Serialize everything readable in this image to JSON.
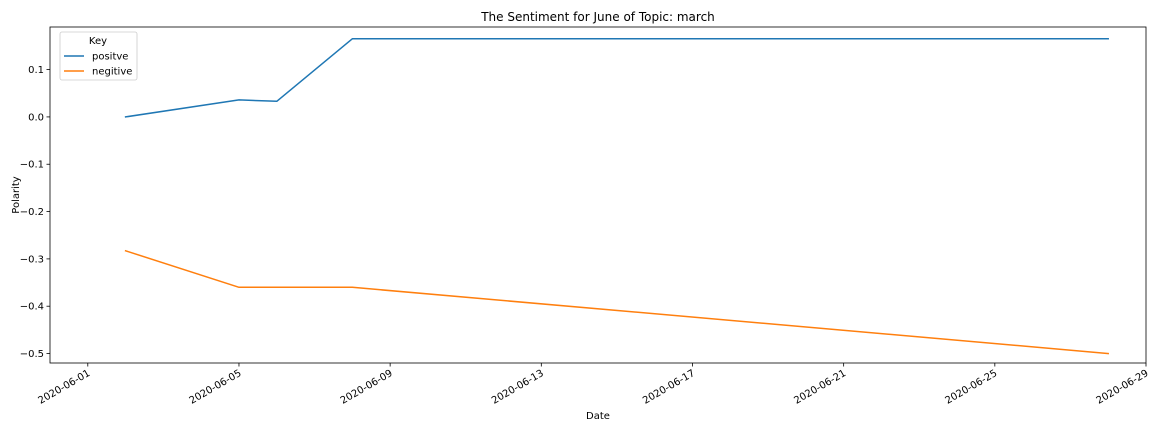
{
  "chart_data": {
    "type": "line",
    "title": "The Sentiment for June of Topic: march",
    "xlabel": "Date",
    "ylabel": "Polarity",
    "x_axis_type": "date",
    "xlim": [
      "2020-05-31",
      "2020-06-29"
    ],
    "ylim": [
      -0.52,
      0.19
    ],
    "x_ticks": [
      "2020-06-01",
      "2020-06-05",
      "2020-06-09",
      "2020-06-13",
      "2020-06-17",
      "2020-06-21",
      "2020-06-25",
      "2020-06-29"
    ],
    "y_ticks": [
      0.1,
      0.0,
      -0.1,
      -0.2,
      -0.3,
      -0.4,
      -0.5
    ],
    "y_tick_labels": [
      "0.1",
      "0.0",
      "−0.1",
      "−0.2",
      "−0.3",
      "−0.4",
      "−0.5"
    ],
    "x_tick_rotation": 30,
    "grid": false,
    "legend": {
      "title": "Key",
      "placement": "top-left"
    },
    "series": [
      {
        "name": "positve",
        "color": "#1f77b4",
        "x": [
          "2020-06-02",
          "2020-06-05",
          "2020-06-06",
          "2020-06-08",
          "2020-06-28"
        ],
        "values": [
          0.0,
          0.036,
          0.033,
          0.165,
          0.165
        ]
      },
      {
        "name": "negitive",
        "color": "#ff7f0e",
        "x": [
          "2020-06-02",
          "2020-06-05",
          "2020-06-08",
          "2020-06-28"
        ],
        "values": [
          -0.283,
          -0.36,
          -0.36,
          -0.5
        ]
      }
    ]
  }
}
